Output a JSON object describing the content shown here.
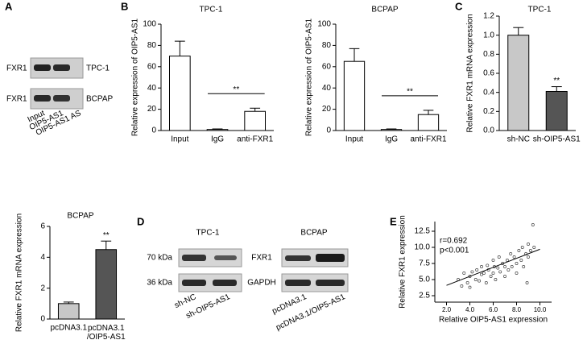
{
  "panel_labels": [
    "A",
    "B",
    "C",
    "D",
    "E"
  ],
  "panel_a": {
    "rows": [
      "FXR1",
      "FXR1"
    ],
    "cell_lines": [
      "TPC-1",
      "BCPAP"
    ],
    "lanes": [
      "Input",
      "OIP5-AS1",
      "OIP5-AS1 AS"
    ]
  },
  "panel_d": {
    "groups": [
      {
        "name": "TPC-1",
        "lanes": [
          "sh-NC",
          "sh-OIP5-AS1"
        ]
      },
      {
        "name": "BCPAP",
        "lanes": [
          "pcDNA3.1",
          "pcDNA3.1/OIP5-AS1"
        ]
      }
    ],
    "sizes": [
      "70 kDa",
      "36 kDa"
    ],
    "proteins": [
      "FXR1",
      "GAPDH"
    ]
  },
  "chart_data": [
    {
      "type": "bar",
      "title": "TPC-1",
      "ylabel": "Relative expression of OIP5-AS1",
      "categories": [
        "Input",
        "IgG",
        "anti-FXR1"
      ],
      "colors": [
        "#ffffff",
        "#ffffff",
        "#ffffff"
      ],
      "series": [
        {
          "values": [
            70,
            1,
            18
          ],
          "errors": [
            14,
            0.5,
            3
          ]
        }
      ],
      "ylim": [
        0,
        100
      ],
      "yticks": [
        0,
        20,
        40,
        60,
        80,
        100
      ],
      "significance": "**"
    },
    {
      "type": "bar",
      "title": "BCPAP",
      "ylabel": "Relative expression of OIP5-AS1",
      "categories": [
        "Input",
        "IgG",
        "anti-FXR1"
      ],
      "colors": [
        "#ffffff",
        "#ffffff",
        "#ffffff"
      ],
      "series": [
        {
          "values": [
            65,
            1,
            15
          ],
          "errors": [
            12,
            0.5,
            4
          ]
        }
      ],
      "ylim": [
        0,
        100
      ],
      "yticks": [
        0,
        20,
        40,
        60,
        80,
        100
      ],
      "significance": "**"
    },
    {
      "type": "bar",
      "title": "TPC-1",
      "ylabel": "Relative FXR1 mRNA expression",
      "categories": [
        "sh-NC",
        "sh-OIP5-AS1"
      ],
      "colors": [
        "#c8c8c8",
        "#555555"
      ],
      "series": [
        {
          "values": [
            1.0,
            0.41
          ],
          "errors": [
            0.08,
            0.05
          ]
        }
      ],
      "ylim": [
        0,
        1.2
      ],
      "yticks": [
        {
          "value": 0,
          "label": "0.0"
        },
        0.2,
        0.4,
        0.6,
        0.8,
        {
          "value": 1,
          "label": "1.0"
        },
        1.2
      ],
      "significance": "**"
    },
    {
      "type": "bar",
      "title": "BCPAP",
      "ylabel": "Relative FXR1 mRNA expression",
      "categories": [
        "pcDNA3.1",
        "pcDNA3.1\n/OIP5-AS1"
      ],
      "colors": [
        "#c8c8c8",
        "#555555"
      ],
      "series": [
        {
          "values": [
            1.0,
            4.5
          ],
          "errors": [
            0.1,
            0.55
          ]
        }
      ],
      "ylim": [
        0,
        6
      ],
      "yticks": [
        0,
        2,
        4,
        6
      ],
      "significance": "**"
    },
    {
      "type": "scatter",
      "xlabel": "Relative OIP5-AS1 expression",
      "ylabel": "Relative FXR1 expression",
      "annotations": [
        "r=0.692",
        "p<0.001"
      ],
      "x": [
        3.0,
        3.3,
        3.5,
        3.8,
        4.0,
        4.0,
        4.2,
        4.5,
        4.6,
        4.8,
        5.0,
        5.0,
        5.2,
        5.4,
        5.5,
        5.6,
        5.8,
        6.0,
        6.0,
        6.1,
        6.2,
        6.4,
        6.5,
        6.6,
        6.8,
        7.0,
        7.0,
        7.2,
        7.3,
        7.5,
        7.6,
        7.8,
        8.0,
        8.0,
        8.2,
        8.4,
        8.5,
        8.6,
        8.8,
        9.0,
        9.0,
        9.2,
        9.4,
        9.5,
        8.9
      ],
      "values": [
        5.0,
        4.0,
        6.0,
        4.5,
        5.5,
        3.8,
        6.2,
        5.0,
        6.5,
        4.8,
        7.0,
        5.8,
        6.0,
        4.5,
        7.2,
        6.5,
        5.5,
        8.0,
        6.0,
        7.0,
        5.0,
        6.8,
        8.5,
        6.2,
        7.5,
        7.0,
        5.5,
        8.0,
        6.5,
        9.0,
        7.0,
        8.5,
        7.5,
        6.0,
        9.5,
        8.0,
        10.0,
        7.0,
        9.0,
        10.5,
        8.5,
        9.5,
        13.5,
        10.0,
        4.5
      ],
      "fit_line": {
        "x": [
          2,
          10
        ],
        "values": [
          4.1,
          9.7
        ]
      },
      "xlim": [
        1,
        11
      ],
      "xticks": [
        {
          "value": 2,
          "label": "2.0"
        },
        {
          "value": 4,
          "label": "4.0"
        },
        {
          "value": 6,
          "label": "6.0"
        },
        {
          "value": 8,
          "label": "8.0"
        },
        {
          "value": 10,
          "label": "10.0"
        }
      ],
      "ylim": [
        1.5,
        14
      ],
      "yticks": [
        2.5,
        {
          "value": 5,
          "label": "5.0"
        },
        7.5,
        {
          "value": 10,
          "label": "10.0"
        },
        12.5
      ]
    }
  ]
}
